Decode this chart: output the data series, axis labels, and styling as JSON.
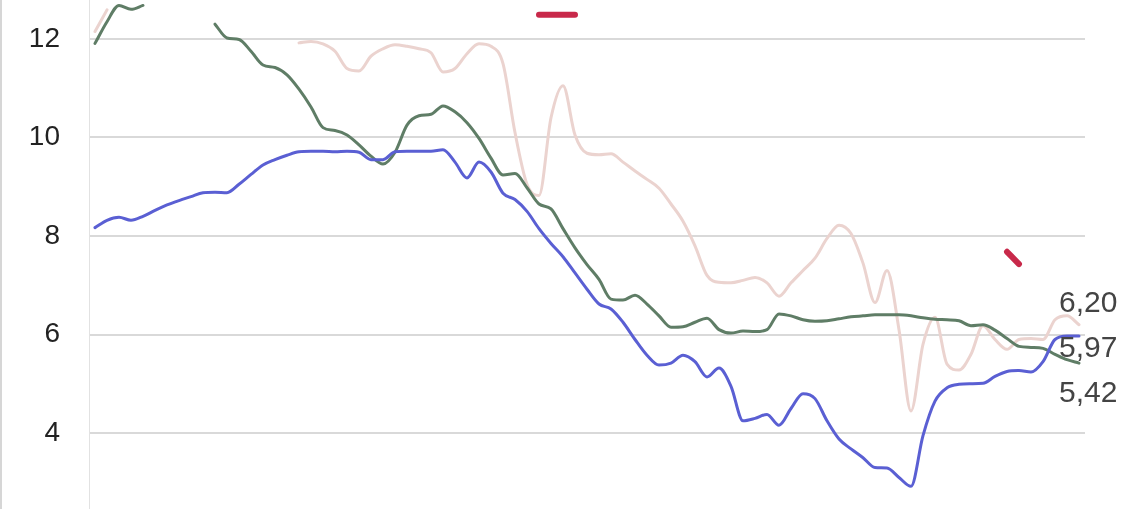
{
  "chart_data": {
    "type": "line",
    "categories": [
      null,
      null,
      null,
      null,
      null,
      null,
      null,
      null,
      null,
      null,
      null,
      null,
      null,
      null,
      null,
      null,
      null,
      null,
      null,
      null,
      null,
      null,
      null,
      null,
      null,
      null,
      null,
      null,
      null,
      null,
      null,
      null,
      null,
      null,
      null,
      null,
      null,
      null,
      null,
      null,
      null,
      null,
      null,
      null,
      null,
      null,
      null,
      null,
      null,
      null,
      null,
      null,
      null,
      null,
      null,
      null,
      null,
      null,
      null,
      null,
      null,
      null,
      null,
      null,
      null,
      null,
      null,
      null,
      null,
      null,
      null,
      null,
      null,
      null,
      null,
      null,
      null,
      null,
      null,
      null,
      null,
      null,
      null
    ],
    "series": [
      {
        "color": "#5a5fd3",
        "values": [
          8.17,
          8.32,
          8.38,
          8.32,
          8.4,
          8.52,
          8.63,
          8.72,
          8.8,
          8.88,
          8.89,
          8.88,
          9.05,
          9.25,
          9.44,
          9.55,
          9.64,
          9.71,
          9.72,
          9.72,
          9.71,
          9.72,
          9.7,
          9.55,
          9.55,
          9.71,
          9.72,
          9.72,
          9.72,
          9.75,
          9.5,
          9.18,
          9.5,
          9.3,
          8.87,
          8.74,
          8.5,
          8.15,
          7.85,
          7.58,
          7.25,
          6.92,
          6.62,
          6.52,
          6.25,
          5.9,
          5.58,
          5.38,
          5.42,
          5.58,
          5.45,
          5.14,
          5.32,
          4.95,
          4.25,
          4.3,
          4.38,
          4.16,
          4.5,
          4.8,
          4.7,
          4.25,
          3.88,
          3.68,
          3.5,
          3.3,
          3.29,
          3.1,
          2.92,
          3.95,
          4.65,
          4.92,
          4.99,
          5.0,
          5.01,
          5.15,
          5.25,
          5.27,
          5.24,
          5.45,
          5.9,
          5.97,
          5.97
        ],
        "value_labels": [
          null,
          null,
          null,
          null,
          null,
          null,
          null,
          null,
          null,
          null,
          null,
          null,
          null,
          null,
          null,
          null,
          null,
          null,
          null,
          null,
          null,
          null,
          null,
          null,
          null,
          null,
          null,
          null,
          null,
          null,
          null,
          null,
          null,
          null,
          null,
          null,
          null,
          null,
          null,
          null,
          null,
          null,
          null,
          null,
          null,
          null,
          null,
          null,
          null,
          null,
          null,
          null,
          null,
          null,
          null,
          null,
          null,
          null,
          null,
          null,
          null,
          null,
          null,
          null,
          null,
          null,
          null,
          null,
          null,
          null,
          null,
          null,
          null,
          null,
          null,
          null,
          null,
          null,
          null,
          null,
          null,
          null,
          "5,97"
        ]
      },
      {
        "color": "#5f7d66",
        "values": [
          11.91,
          12.35,
          12.68,
          12.6,
          12.68,
          null,
          null,
          null,
          null,
          null,
          12.3,
          12.02,
          11.99,
          11.75,
          11.47,
          11.42,
          11.27,
          10.98,
          10.62,
          10.2,
          10.14,
          10.05,
          9.85,
          9.62,
          9.46,
          9.7,
          10.25,
          10.44,
          10.47,
          10.64,
          10.52,
          10.3,
          9.98,
          9.58,
          9.24,
          9.27,
          8.98,
          8.65,
          8.55,
          8.15,
          7.76,
          7.42,
          7.12,
          6.72,
          6.7,
          6.8,
          6.62,
          6.38,
          6.15,
          6.16,
          6.25,
          6.33,
          6.1,
          6.03,
          6.07,
          6.06,
          6.1,
          6.42,
          6.38,
          6.3,
          6.27,
          6.28,
          6.32,
          6.36,
          6.38,
          6.4,
          6.4,
          6.4,
          6.38,
          6.34,
          6.31,
          6.3,
          6.28,
          6.18,
          6.2,
          6.09,
          5.92,
          5.76,
          5.74,
          5.72,
          5.6,
          5.49,
          5.42
        ],
        "value_labels": [
          null,
          null,
          null,
          null,
          null,
          null,
          null,
          null,
          null,
          null,
          null,
          null,
          null,
          null,
          null,
          null,
          null,
          null,
          null,
          null,
          null,
          null,
          null,
          null,
          null,
          null,
          null,
          null,
          null,
          null,
          null,
          null,
          null,
          null,
          null,
          null,
          null,
          null,
          null,
          null,
          null,
          null,
          null,
          null,
          null,
          null,
          null,
          null,
          null,
          null,
          null,
          null,
          null,
          null,
          null,
          null,
          null,
          null,
          null,
          null,
          null,
          null,
          null,
          null,
          null,
          null,
          null,
          null,
          null,
          null,
          null,
          null,
          null,
          null,
          null,
          null,
          null,
          null,
          null,
          null,
          null,
          null,
          "5,42"
        ]
      },
      {
        "color": "#ebd3cf",
        "values": [
          12.15,
          12.59,
          null,
          null,
          null,
          null,
          null,
          null,
          null,
          null,
          null,
          null,
          null,
          null,
          null,
          null,
          null,
          11.92,
          11.95,
          11.9,
          11.75,
          11.4,
          11.35,
          11.65,
          11.8,
          11.88,
          11.85,
          11.8,
          11.72,
          11.33,
          11.4,
          11.7,
          11.9,
          11.85,
          11.5,
          10.1,
          9.05,
          8.82,
          10.4,
          11.05,
          10.05,
          9.68,
          9.65,
          9.67,
          9.5,
          9.32,
          9.15,
          8.97,
          8.65,
          8.3,
          7.8,
          7.2,
          7.06,
          7.05,
          7.1,
          7.16,
          7.05,
          6.78,
          7.05,
          7.3,
          7.55,
          7.95,
          8.22,
          8.05,
          7.45,
          6.65,
          7.3,
          6.1,
          4.45,
          5.8,
          6.35,
          5.4,
          5.28,
          5.6,
          6.18,
          5.9,
          5.7,
          5.9,
          5.92,
          5.9,
          6.3,
          6.38,
          6.2
        ],
        "value_labels": [
          null,
          null,
          null,
          null,
          null,
          null,
          null,
          null,
          null,
          null,
          null,
          null,
          null,
          null,
          null,
          null,
          null,
          null,
          null,
          null,
          null,
          null,
          null,
          null,
          null,
          null,
          null,
          null,
          null,
          null,
          null,
          null,
          null,
          null,
          null,
          null,
          null,
          null,
          null,
          null,
          null,
          null,
          null,
          null,
          null,
          null,
          null,
          null,
          null,
          null,
          null,
          null,
          null,
          null,
          null,
          null,
          null,
          null,
          null,
          null,
          null,
          null,
          null,
          null,
          null,
          null,
          null,
          null,
          null,
          null,
          null,
          null,
          null,
          null,
          null,
          null,
          null,
          null,
          null,
          null,
          null,
          null,
          "6,20"
        ]
      },
      {
        "color": "#c8294a",
        "values": [
          null,
          null,
          null,
          null,
          null,
          null,
          null,
          null,
          null,
          null,
          null,
          null,
          null,
          null,
          null,
          null,
          null,
          null,
          null,
          null,
          null,
          null,
          null,
          null,
          null,
          null,
          null,
          null,
          null,
          null,
          null,
          null,
          null,
          null,
          null,
          null,
          null,
          12.49,
          12.49,
          12.49,
          12.49,
          null,
          null,
          null,
          null,
          null,
          null,
          null,
          null,
          null,
          null,
          null,
          null,
          null,
          null,
          null,
          null,
          null,
          null,
          null,
          null,
          null,
          null,
          null,
          null,
          null,
          null,
          null,
          null,
          null,
          null,
          null,
          null,
          null,
          null,
          null,
          7.68,
          7.43,
          null,
          null,
          null,
          null,
          null
        ]
      }
    ],
    "ylim": [
      2.46,
      12.79
    ],
    "yticks": [
      4,
      6,
      8,
      10,
      12
    ],
    "grid": "y",
    "tick_labels": "y",
    "marker": "none",
    "line_style": "solid"
  }
}
